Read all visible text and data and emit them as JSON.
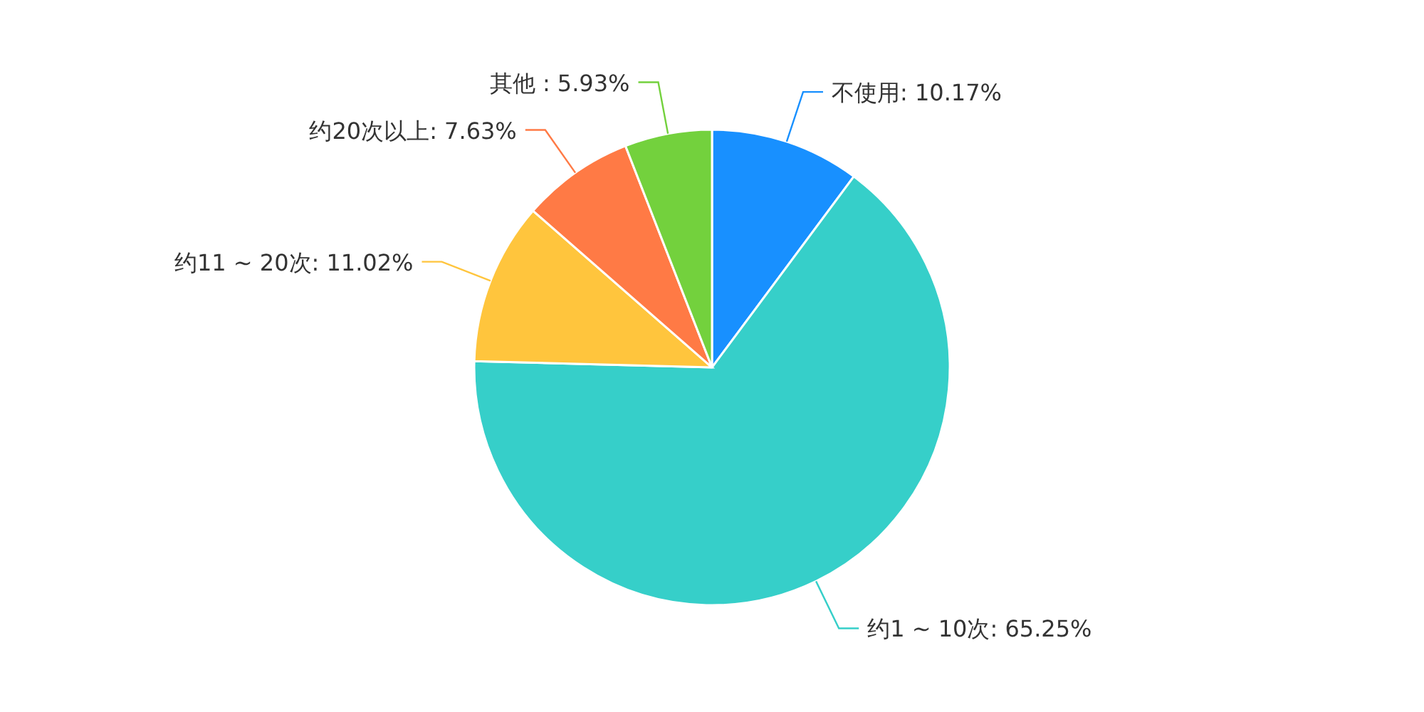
{
  "chart_data": {
    "type": "pie",
    "categories": [
      "不使用",
      "约1 ~ 10次",
      "约11 ~ 20次",
      "约20次以上",
      "其他 "
    ],
    "values": [
      10.17,
      65.25,
      11.02,
      7.63,
      5.93
    ],
    "value_labels": [
      ": 10.17%",
      ": 65.25%",
      ": 11.02%",
      ": 7.63%",
      ": 5.93%"
    ],
    "colors": [
      "#1890ff",
      "#36cfc9",
      "#ffc53d",
      "#ff7a45",
      "#73d13d"
    ]
  }
}
